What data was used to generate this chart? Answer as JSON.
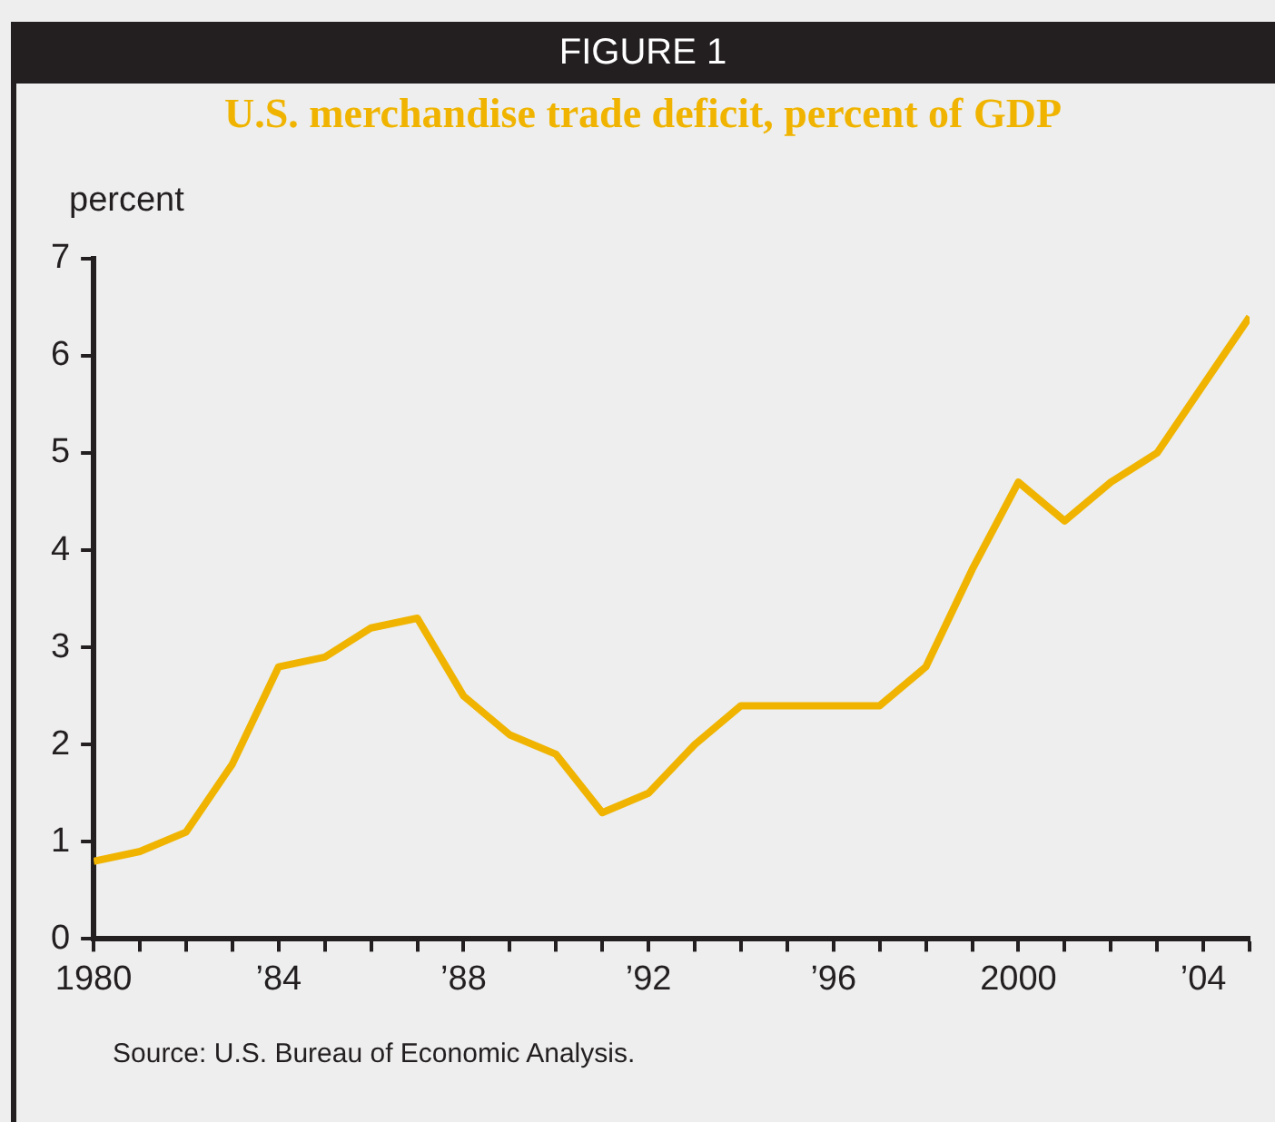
{
  "chart_data": {
    "type": "line",
    "title": "FIGURE 1",
    "subtitle": "U.S. merchandise trade deficit, percent of GDP",
    "ylabel": "percent",
    "annotations": [
      "Source: U.S. Bureau of Economic Analysis."
    ],
    "x": [
      1980,
      1981,
      1982,
      1983,
      1984,
      1985,
      1986,
      1987,
      1988,
      1989,
      1990,
      1991,
      1992,
      1993,
      1994,
      1995,
      1996,
      1997,
      1998,
      1999,
      2000,
      2001,
      2002,
      2003,
      2004,
      2005
    ],
    "series": [
      {
        "color": "#f0b400",
        "values": [
          0.8,
          0.9,
          1.1,
          1.8,
          2.8,
          2.9,
          3.2,
          3.3,
          2.5,
          2.1,
          1.9,
          1.3,
          1.5,
          2.0,
          2.4,
          2.4,
          2.4,
          2.4,
          2.8,
          3.8,
          4.7,
          4.3,
          4.7,
          5.0,
          5.7,
          6.4
        ]
      }
    ],
    "xlim": [
      1980,
      2005
    ],
    "xticks": [
      {
        "value": 1980,
        "label": "1980"
      },
      {
        "value": 1981,
        "label": null
      },
      {
        "value": 1982,
        "label": null
      },
      {
        "value": 1983,
        "label": null
      },
      {
        "value": 1984,
        "label": "’84"
      },
      {
        "value": 1985,
        "label": null
      },
      {
        "value": 1986,
        "label": null
      },
      {
        "value": 1987,
        "label": null
      },
      {
        "value": 1988,
        "label": "’88"
      },
      {
        "value": 1989,
        "label": null
      },
      {
        "value": 1990,
        "label": null
      },
      {
        "value": 1991,
        "label": null
      },
      {
        "value": 1992,
        "label": "’92"
      },
      {
        "value": 1993,
        "label": null
      },
      {
        "value": 1994,
        "label": null
      },
      {
        "value": 1995,
        "label": null
      },
      {
        "value": 1996,
        "label": "’96"
      },
      {
        "value": 1997,
        "label": null
      },
      {
        "value": 1998,
        "label": null
      },
      {
        "value": 1999,
        "label": null
      },
      {
        "value": 2000,
        "label": "2000"
      },
      {
        "value": 2001,
        "label": null
      },
      {
        "value": 2002,
        "label": null
      },
      {
        "value": 2003,
        "label": null
      },
      {
        "value": 2004,
        "label": "’04"
      },
      {
        "value": 2005,
        "label": null
      }
    ],
    "ylim": [
      0,
      7
    ],
    "yticks": [
      0,
      1,
      2,
      3,
      4,
      5,
      6,
      7
    ],
    "grid": false,
    "legend": false,
    "marker": "none",
    "line_style": "solid"
  }
}
